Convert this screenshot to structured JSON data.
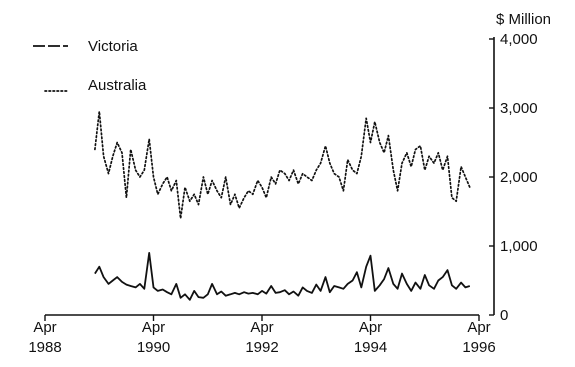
{
  "chart_data": {
    "type": "line",
    "title": "",
    "xlabel": "",
    "ylabel": "$ Million",
    "ylim": [
      0,
      4000
    ],
    "y_ticks": [
      0,
      1000,
      2000,
      3000,
      4000
    ],
    "y_tick_labels": [
      "0",
      "1,000",
      "2,000",
      "3,000",
      "4,000"
    ],
    "y_axis_side": "right",
    "x_ticks": [
      {
        "year": 1988.25,
        "month": "Apr",
        "year_label": "1988"
      },
      {
        "year": 1990.25,
        "month": "Apr",
        "year_label": "1990"
      },
      {
        "year": 1992.25,
        "month": "Apr",
        "year_label": "1992"
      },
      {
        "year": 1994.25,
        "month": "Apr",
        "year_label": "1994"
      },
      {
        "year": 1996.25,
        "month": "Apr",
        "year_label": "1996"
      }
    ],
    "xlim": [
      1988.25,
      1996.25
    ],
    "grid": false,
    "legend": "top-left",
    "series": [
      {
        "name": "Victoria",
        "style": "solid",
        "color": "#111111",
        "x": [
          1989.17,
          1989.25,
          1989.33,
          1989.42,
          1989.5,
          1989.58,
          1989.67,
          1989.75,
          1989.83,
          1989.92,
          1990.0,
          1990.08,
          1990.17,
          1990.25,
          1990.33,
          1990.42,
          1990.5,
          1990.58,
          1990.67,
          1990.75,
          1990.83,
          1990.92,
          1991.0,
          1991.08,
          1991.17,
          1991.25,
          1991.33,
          1991.42,
          1991.5,
          1991.58,
          1991.67,
          1991.75,
          1991.83,
          1991.92,
          1992.0,
          1992.08,
          1992.17,
          1992.25,
          1992.33,
          1992.42,
          1992.5,
          1992.58,
          1992.67,
          1992.75,
          1992.83,
          1992.92,
          1993.0,
          1993.08,
          1993.17,
          1993.25,
          1993.33,
          1993.42,
          1993.5,
          1993.58,
          1993.67,
          1993.75,
          1993.83,
          1993.92,
          1994.0,
          1994.08,
          1994.17,
          1994.25,
          1994.33,
          1994.42,
          1994.5,
          1994.58,
          1994.67,
          1994.75,
          1994.83,
          1994.92,
          1995.0,
          1995.08,
          1995.17,
          1995.25,
          1995.33,
          1995.42,
          1995.5,
          1995.58,
          1995.67,
          1995.75,
          1995.83,
          1995.92,
          1996.0,
          1996.08
        ],
        "y": [
          600,
          700,
          550,
          450,
          500,
          550,
          480,
          440,
          420,
          400,
          450,
          380,
          900,
          400,
          350,
          370,
          330,
          300,
          450,
          250,
          300,
          220,
          350,
          260,
          250,
          300,
          450,
          300,
          340,
          280,
          300,
          320,
          300,
          330,
          310,
          320,
          300,
          350,
          310,
          420,
          320,
          330,
          360,
          300,
          340,
          280,
          400,
          350,
          320,
          440,
          350,
          550,
          330,
          420,
          400,
          380,
          450,
          500,
          620,
          400,
          700,
          860,
          350,
          430,
          520,
          680,
          450,
          380,
          600,
          450,
          350,
          470,
          380,
          580,
          430,
          380,
          500,
          550,
          650,
          430,
          380,
          470,
          400,
          420
        ]
      },
      {
        "name": "Australia",
        "style": "dotted",
        "color": "#111111",
        "x": [
          1989.17,
          1989.25,
          1989.33,
          1989.42,
          1989.5,
          1989.58,
          1989.67,
          1989.75,
          1989.83,
          1989.92,
          1990.0,
          1990.08,
          1990.17,
          1990.25,
          1990.33,
          1990.42,
          1990.5,
          1990.58,
          1990.67,
          1990.75,
          1990.83,
          1990.92,
          1991.0,
          1991.08,
          1991.17,
          1991.25,
          1991.33,
          1991.42,
          1991.5,
          1991.58,
          1991.67,
          1991.75,
          1991.83,
          1991.92,
          1992.0,
          1992.08,
          1992.17,
          1992.25,
          1992.33,
          1992.42,
          1992.5,
          1992.58,
          1992.67,
          1992.75,
          1992.83,
          1992.92,
          1993.0,
          1993.08,
          1993.17,
          1993.25,
          1993.33,
          1993.42,
          1993.5,
          1993.58,
          1993.67,
          1993.75,
          1993.83,
          1993.92,
          1994.0,
          1994.08,
          1994.17,
          1994.25,
          1994.33,
          1994.42,
          1994.5,
          1994.58,
          1994.67,
          1994.75,
          1994.83,
          1994.92,
          1995.0,
          1995.08,
          1995.17,
          1995.25,
          1995.33,
          1995.42,
          1995.5,
          1995.58,
          1995.67,
          1995.75,
          1995.83,
          1995.92,
          1996.0,
          1996.08
        ],
        "y": [
          2400,
          2950,
          2300,
          2050,
          2300,
          2500,
          2350,
          1700,
          2400,
          2100,
          2000,
          2100,
          2550,
          2000,
          1750,
          1900,
          2000,
          1800,
          1950,
          1400,
          1850,
          1650,
          1750,
          1600,
          2000,
          1750,
          1950,
          1800,
          1700,
          2000,
          1600,
          1750,
          1550,
          1700,
          1800,
          1750,
          1950,
          1850,
          1700,
          2000,
          1900,
          2100,
          2050,
          1950,
          2100,
          1900,
          2050,
          2000,
          1950,
          2100,
          2200,
          2450,
          2200,
          2050,
          2000,
          1800,
          2250,
          2100,
          2050,
          2300,
          2850,
          2500,
          2800,
          2500,
          2350,
          2600,
          2100,
          1800,
          2200,
          2350,
          2150,
          2400,
          2450,
          2100,
          2300,
          2200,
          2350,
          2100,
          2300,
          1700,
          1650,
          2150,
          2000,
          1850
        ]
      }
    ]
  }
}
